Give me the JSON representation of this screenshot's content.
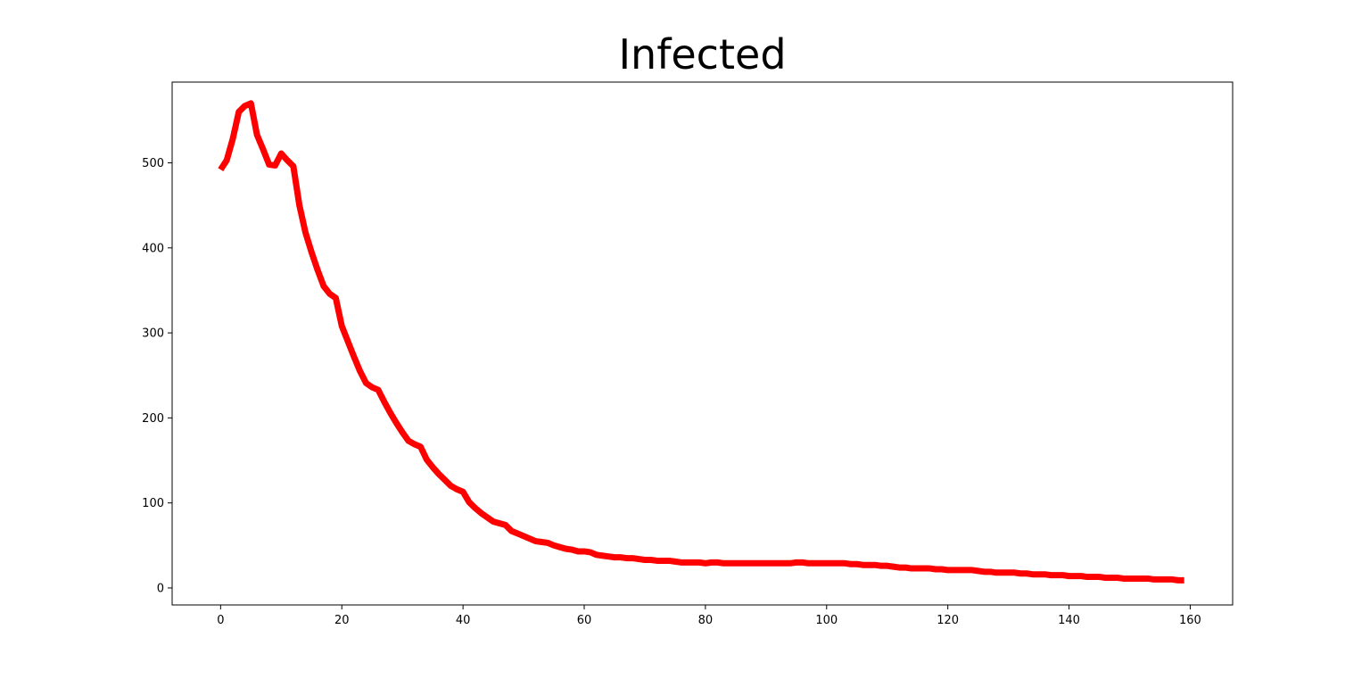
{
  "chart_data": {
    "type": "line",
    "title": "Infected",
    "xlabel": "",
    "ylabel": "",
    "xlim": [
      -8,
      167
    ],
    "ylim": [
      -20,
      595
    ],
    "xticks": [
      0,
      20,
      40,
      60,
      80,
      100,
      120,
      140,
      160
    ],
    "yticks": [
      0,
      100,
      200,
      300,
      400,
      500
    ],
    "grid": false,
    "legend": "none",
    "series": [
      {
        "color": "#ff0000",
        "x": [
          0,
          1,
          2,
          3,
          4,
          5,
          6,
          7,
          8,
          9,
          10,
          11,
          12,
          13,
          14,
          15,
          16,
          17,
          18,
          19,
          20,
          21,
          22,
          23,
          24,
          25,
          26,
          27,
          28,
          29,
          30,
          31,
          32,
          33,
          34,
          35,
          36,
          37,
          38,
          39,
          40,
          41,
          42,
          43,
          44,
          45,
          46,
          47,
          48,
          49,
          50,
          51,
          52,
          53,
          54,
          55,
          56,
          57,
          58,
          59,
          60,
          61,
          62,
          63,
          64,
          65,
          66,
          67,
          68,
          69,
          70,
          71,
          72,
          73,
          74,
          75,
          76,
          77,
          78,
          79,
          80,
          81,
          82,
          83,
          84,
          85,
          86,
          87,
          88,
          89,
          90,
          91,
          92,
          93,
          94,
          95,
          96,
          97,
          98,
          99,
          100,
          101,
          102,
          103,
          104,
          105,
          106,
          107,
          108,
          109,
          110,
          111,
          112,
          113,
          114,
          115,
          116,
          117,
          118,
          119,
          120,
          121,
          122,
          123,
          124,
          125,
          126,
          127,
          128,
          129,
          130,
          131,
          132,
          133,
          134,
          135,
          136,
          137,
          138,
          139,
          140,
          141,
          142,
          143,
          144,
          145,
          146,
          147,
          148,
          149,
          150,
          151,
          152,
          153,
          154,
          155,
          156,
          157,
          158,
          159
        ],
        "values": [
          492,
          503,
          528,
          560,
          567,
          570,
          533,
          516,
          498,
          497,
          511,
          503,
          496,
          450,
          418,
          395,
          374,
          355,
          346,
          341,
          308,
          290,
          272,
          255,
          241,
          236,
          233,
          219,
          206,
          194,
          183,
          173,
          169,
          166,
          151,
          142,
          134,
          127,
          120,
          116,
          113,
          101,
          94,
          88,
          83,
          78,
          76,
          74,
          67,
          64,
          61,
          58,
          55,
          54,
          53,
          50,
          48,
          46,
          45,
          43,
          43,
          42,
          39,
          38,
          37,
          36,
          36,
          35,
          35,
          34,
          33,
          33,
          32,
          32,
          32,
          31,
          30,
          30,
          30,
          30,
          29,
          30,
          30,
          29,
          29,
          29,
          29,
          29,
          29,
          29,
          29,
          29,
          29,
          29,
          29,
          30,
          30,
          29,
          29,
          29,
          29,
          29,
          29,
          29,
          28,
          28,
          27,
          27,
          27,
          26,
          26,
          25,
          24,
          24,
          23,
          23,
          23,
          23,
          22,
          22,
          21,
          21,
          21,
          21,
          21,
          20,
          19,
          19,
          18,
          18,
          18,
          18,
          17,
          17,
          16,
          16,
          16,
          15,
          15,
          15,
          14,
          14,
          14,
          13,
          13,
          13,
          12,
          12,
          12,
          11,
          11,
          11,
          11,
          11,
          10,
          10,
          10,
          10,
          9,
          9
        ]
      }
    ]
  }
}
